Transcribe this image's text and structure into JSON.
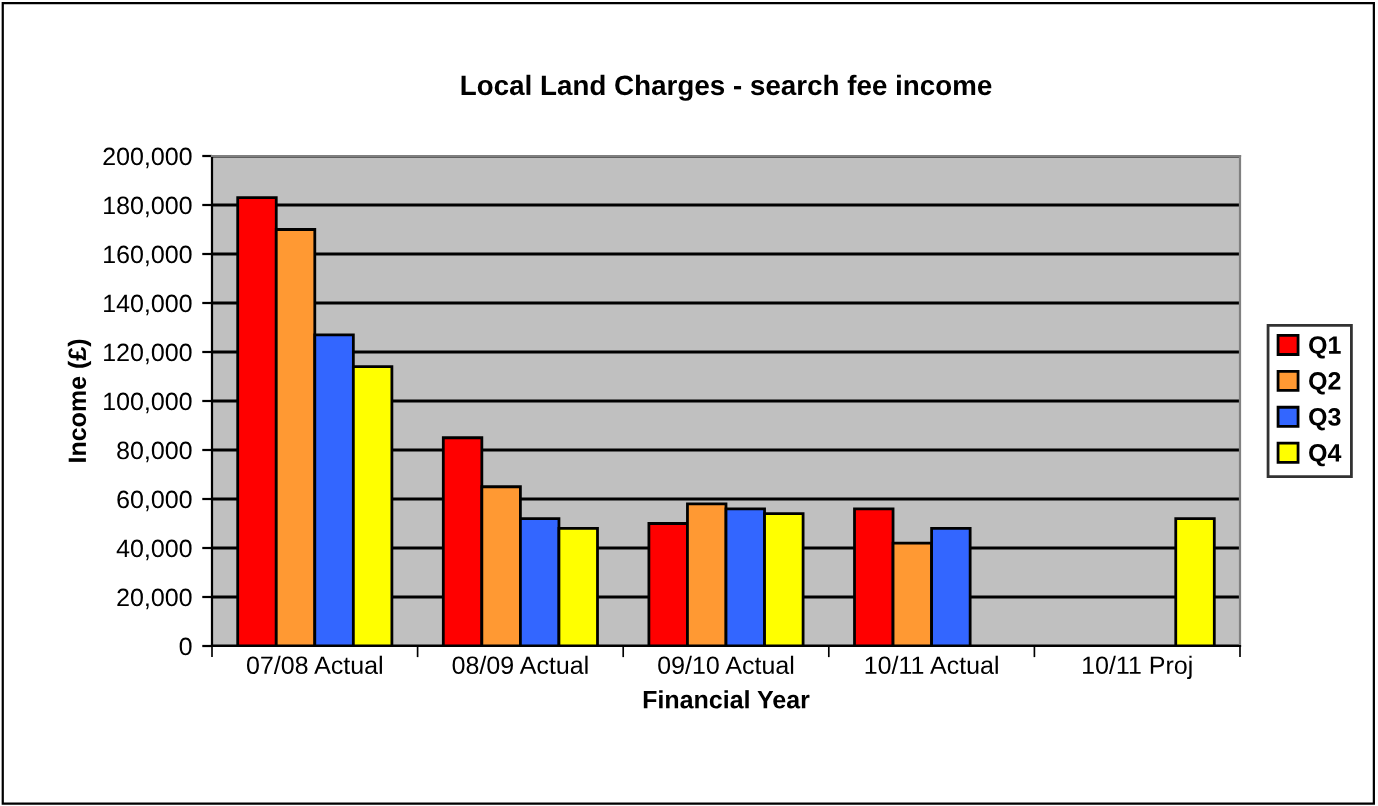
{
  "chart_data": {
    "type": "bar",
    "title": "Local Land Charges - search fee income",
    "xlabel": "Financial Year",
    "ylabel": "Income (£)",
    "categories": [
      "07/08 Actual",
      "08/09 Actual",
      "09/10 Actual",
      "10/11 Actual",
      "10/11 Proj"
    ],
    "series": [
      {
        "name": "Q1",
        "color": "#ff0000",
        "values": [
          183000,
          85000,
          50000,
          56000,
          null
        ]
      },
      {
        "name": "Q2",
        "color": "#ff9933",
        "values": [
          170000,
          65000,
          58000,
          42000,
          null
        ]
      },
      {
        "name": "Q3",
        "color": "#3366ff",
        "values": [
          127000,
          52000,
          56000,
          48000,
          null
        ]
      },
      {
        "name": "Q4",
        "color": "#ffff00",
        "values": [
          114000,
          48000,
          54000,
          null,
          52000
        ]
      }
    ],
    "ylim": [
      0,
      200000
    ],
    "yticks": [
      {
        "value": 0,
        "label": "0"
      },
      {
        "value": 20000,
        "label": "20,000"
      },
      {
        "value": 40000,
        "label": "40,000"
      },
      {
        "value": 60000,
        "label": "60,000"
      },
      {
        "value": 80000,
        "label": "80,000"
      },
      {
        "value": 100000,
        "label": "100,000"
      },
      {
        "value": 120000,
        "label": "120,000"
      },
      {
        "value": 140000,
        "label": "140,000"
      },
      {
        "value": 160000,
        "label": "160,000"
      },
      {
        "value": 180000,
        "label": "180,000"
      },
      {
        "value": 200000,
        "label": "200,000"
      }
    ],
    "grid": "y",
    "legend": "right"
  }
}
